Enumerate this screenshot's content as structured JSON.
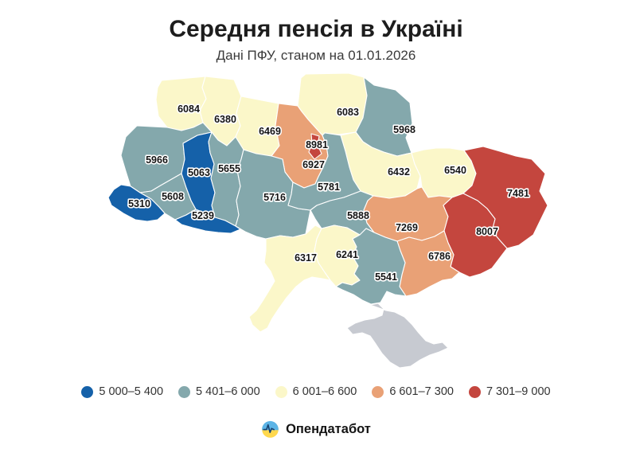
{
  "header": {
    "title": "Середня пенсія в Україні",
    "subtitle": "Дані ПФУ, станом на 01.01.2026"
  },
  "footer": {
    "brand": "Опендатабот"
  },
  "chart_data": {
    "type": "choropleth",
    "title": "Середня пенсія в Україні",
    "subtitle": "Дані ПФУ, станом на 01.01.2026",
    "legend_position": "bottom",
    "bins": [
      {
        "label": "5 000–5 400",
        "color": "#1561a9"
      },
      {
        "label": "5 401–6 000",
        "color": "#84a8ac"
      },
      {
        "label": "6 001–6 600",
        "color": "#fbf7c9"
      },
      {
        "label": "6 601–7 300",
        "color": "#e9a176"
      },
      {
        "label": "7 301–9 000",
        "color": "#c4463e"
      }
    ],
    "no_data_color": "#c7cad1",
    "border_color": "#ffffff",
    "regions": [
      {
        "id": "volyn",
        "value": 6084,
        "bin": 2
      },
      {
        "id": "rivne",
        "value": 6380,
        "bin": 2
      },
      {
        "id": "zhytomyr",
        "value": 6469,
        "bin": 2
      },
      {
        "id": "chernihiv",
        "value": 6083,
        "bin": 2
      },
      {
        "id": "sumy",
        "value": 5968,
        "bin": 1
      },
      {
        "id": "kyiv-oblast",
        "value": 6927,
        "bin": 3
      },
      {
        "id": "kyiv-city",
        "value": 8981,
        "bin": 4
      },
      {
        "id": "lviv",
        "value": 5966,
        "bin": 1
      },
      {
        "id": "ternopil",
        "value": 5063,
        "bin": 0
      },
      {
        "id": "khmelnytskyi",
        "value": 5655,
        "bin": 1
      },
      {
        "id": "poltava",
        "value": 6432,
        "bin": 2
      },
      {
        "id": "kharkiv",
        "value": 6540,
        "bin": 2
      },
      {
        "id": "luhansk",
        "value": 7481,
        "bin": 4
      },
      {
        "id": "ivano-frankivsk",
        "value": 5608,
        "bin": 1
      },
      {
        "id": "vinnytsia",
        "value": 5716,
        "bin": 1
      },
      {
        "id": "cherkasy",
        "value": 5781,
        "bin": 1
      },
      {
        "id": "zakarpattia",
        "value": 5310,
        "bin": 0
      },
      {
        "id": "chernivtsi",
        "value": 5239,
        "bin": 0
      },
      {
        "id": "kirovohrad",
        "value": 5888,
        "bin": 1
      },
      {
        "id": "dnipropetrovsk",
        "value": 7269,
        "bin": 3
      },
      {
        "id": "donetsk",
        "value": 8007,
        "bin": 4
      },
      {
        "id": "zaporizhzhia",
        "value": 6786,
        "bin": 3
      },
      {
        "id": "odesa",
        "value": 6317,
        "bin": 2
      },
      {
        "id": "mykolaiv",
        "value": 6241,
        "bin": 2
      },
      {
        "id": "kherson",
        "value": 5541,
        "bin": 1
      },
      {
        "id": "crimea",
        "value": null,
        "bin": null
      }
    ]
  }
}
